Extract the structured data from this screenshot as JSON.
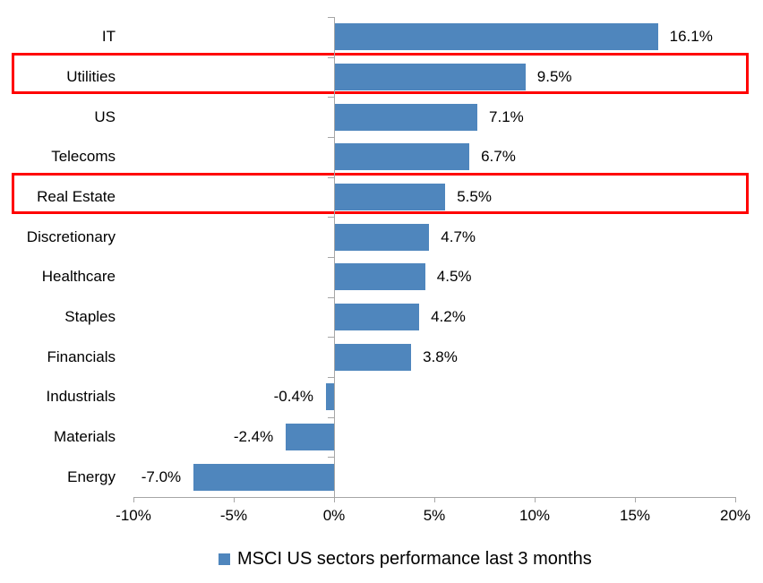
{
  "chart_data": {
    "type": "bar",
    "orientation": "horizontal",
    "title": "",
    "categories": [
      "IT",
      "Utilities",
      "US",
      "Telecoms",
      "Real Estate",
      "Discretionary",
      "Healthcare",
      "Staples",
      "Financials",
      "Industrials",
      "Materials",
      "Energy"
    ],
    "values": [
      16.1,
      9.5,
      7.1,
      6.7,
      5.5,
      4.7,
      4.5,
      4.2,
      3.8,
      -0.4,
      -2.4,
      -7.0
    ],
    "value_labels": [
      "16.1%",
      "9.5%",
      "7.1%",
      "6.7%",
      "5.5%",
      "4.7%",
      "4.5%",
      "4.2%",
      "3.8%",
      "-0.4%",
      "-2.4%",
      "-7.0%"
    ],
    "highlighted": [
      "Utilities",
      "Real Estate"
    ],
    "x_ticks": [
      -10,
      -5,
      0,
      5,
      10,
      15,
      20
    ],
    "x_tick_labels": [
      "-10%",
      "-5%",
      "0%",
      "5%",
      "10%",
      "15%",
      "20%"
    ],
    "xlim": [
      -10,
      20
    ],
    "grid": false,
    "legend": "MSCI US sectors performance last 3 months",
    "legend_position": "bottom-center",
    "colors": {
      "bar": "#4F86BD",
      "highlight_border": "#FF0000",
      "axis": "#A6A6A6",
      "text": "#000000",
      "background": "#FFFFFF"
    }
  }
}
